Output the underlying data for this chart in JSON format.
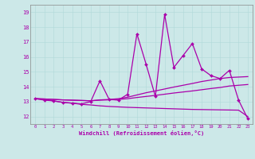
{
  "xlabel": "Windchill (Refroidissement éolien,°C)",
  "bg_color": "#cce8e8",
  "line_color": "#aa00aa",
  "xlim": [
    -0.5,
    23.5
  ],
  "ylim": [
    11.5,
    19.5
  ],
  "yticks": [
    12,
    13,
    14,
    15,
    16,
    17,
    18,
    19
  ],
  "xticks": [
    0,
    1,
    2,
    3,
    4,
    5,
    6,
    7,
    8,
    9,
    10,
    11,
    12,
    13,
    14,
    15,
    16,
    17,
    18,
    19,
    20,
    21,
    22,
    23
  ],
  "series": [
    {
      "x": [
        0,
        1,
        2,
        3,
        4,
        5,
        6,
        7,
        8,
        9,
        10,
        11,
        12,
        13,
        14,
        15,
        16,
        17,
        18,
        19,
        20,
        21,
        22,
        23
      ],
      "y": [
        13.2,
        13.15,
        13.05,
        12.95,
        12.9,
        12.82,
        12.78,
        12.72,
        12.68,
        12.65,
        12.62,
        12.6,
        12.58,
        12.56,
        12.54,
        12.52,
        12.5,
        12.48,
        12.47,
        12.46,
        12.45,
        12.44,
        12.43,
        12.0
      ],
      "marker": false,
      "linestyle": "-",
      "linewidth": 0.9
    },
    {
      "x": [
        0,
        1,
        2,
        3,
        4,
        5,
        6,
        7,
        8,
        9,
        10,
        11,
        12,
        13,
        14,
        15,
        16,
        17,
        18,
        19,
        20,
        21,
        22,
        23
      ],
      "y": [
        13.2,
        13.18,
        13.15,
        13.12,
        13.1,
        13.08,
        13.06,
        13.1,
        13.12,
        13.15,
        13.2,
        13.28,
        13.35,
        13.42,
        13.5,
        13.58,
        13.65,
        13.72,
        13.8,
        13.88,
        13.95,
        14.05,
        14.1,
        14.15
      ],
      "marker": false,
      "linestyle": "-",
      "linewidth": 0.9
    },
    {
      "x": [
        0,
        1,
        2,
        3,
        4,
        5,
        6,
        7,
        8,
        9,
        10,
        11,
        12,
        13,
        14,
        15,
        16,
        17,
        18,
        19,
        20,
        21,
        22,
        23
      ],
      "y": [
        13.2,
        13.18,
        13.15,
        13.12,
        13.1,
        13.08,
        13.06,
        13.12,
        13.15,
        13.2,
        13.3,
        13.45,
        13.6,
        13.72,
        13.85,
        13.98,
        14.1,
        14.22,
        14.35,
        14.45,
        14.55,
        14.62,
        14.65,
        14.68
      ],
      "marker": false,
      "linestyle": "-",
      "linewidth": 0.9
    },
    {
      "x": [
        0,
        1,
        2,
        3,
        4,
        5,
        6,
        7,
        8,
        9,
        10,
        11,
        12,
        13,
        14,
        15,
        16,
        17,
        18,
        19,
        20,
        21,
        22,
        23
      ],
      "y": [
        13.2,
        13.1,
        13.05,
        12.95,
        12.9,
        12.85,
        13.0,
        14.4,
        13.15,
        13.1,
        13.5,
        17.55,
        15.5,
        13.35,
        18.85,
        15.3,
        16.1,
        16.9,
        15.2,
        14.75,
        14.55,
        15.1,
        13.1,
        11.85
      ],
      "marker": true,
      "linestyle": "-",
      "linewidth": 0.9
    }
  ]
}
